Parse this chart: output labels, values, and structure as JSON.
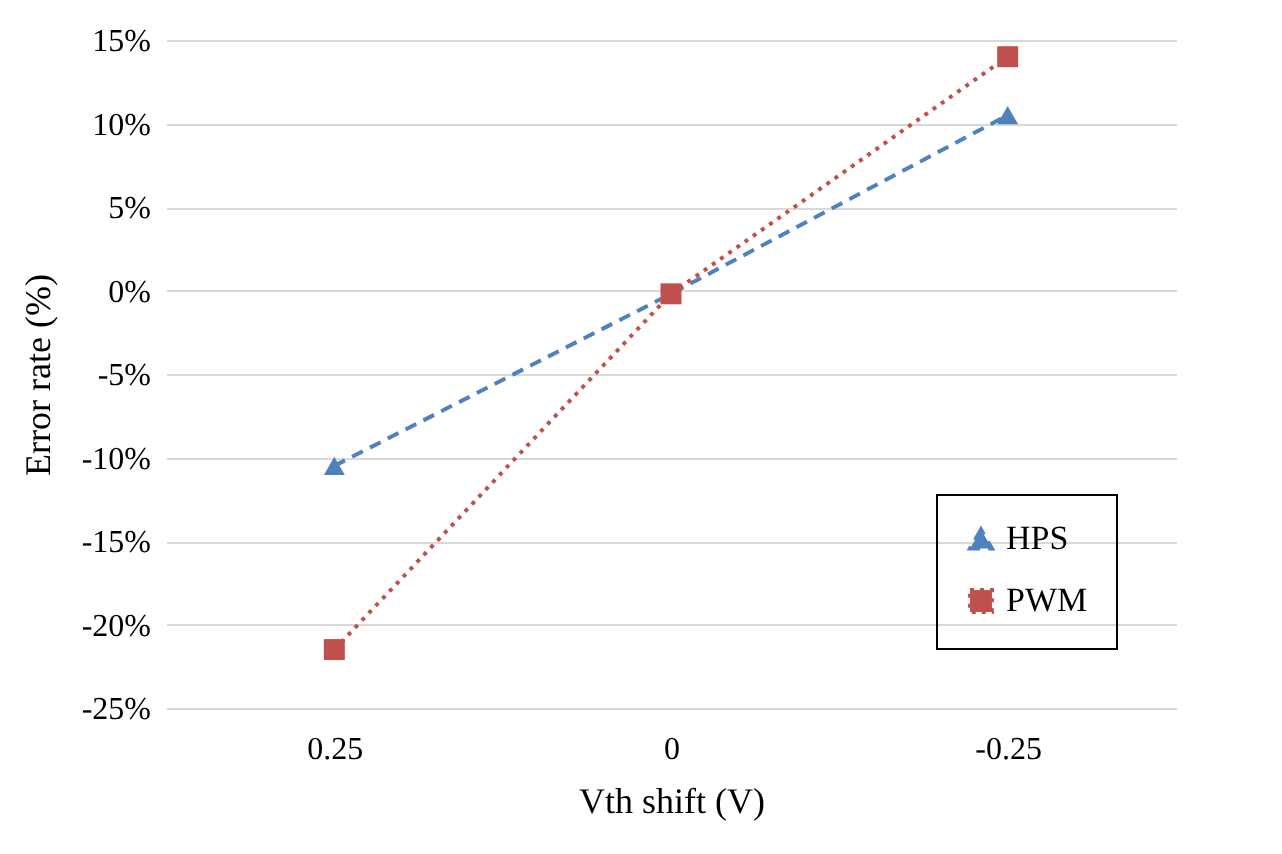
{
  "chart_data": {
    "type": "line",
    "xlabel": "Vth shift (V)",
    "ylabel": "Error rate (%)",
    "categories": [
      "0.25",
      "0",
      "-0.25"
    ],
    "series": [
      {
        "name": "HPS",
        "color": "#4f81bd",
        "values": [
          -10.5,
          -0.2,
          10.5
        ],
        "marker": "triangle",
        "line_style": "dashed"
      },
      {
        "name": "PWM",
        "color": "#c0504d",
        "values": [
          -21.5,
          -0.2,
          14
        ],
        "marker": "square",
        "line_style": "dotted"
      }
    ],
    "ylim": [
      -25,
      15
    ],
    "yticks": [
      {
        "value": -25,
        "label": "-25%"
      },
      {
        "value": -20,
        "label": "-20%"
      },
      {
        "value": -15,
        "label": "-15%"
      },
      {
        "value": -10,
        "label": "-10%"
      },
      {
        "value": -5,
        "label": "-5%"
      },
      {
        "value": 0,
        "label": "0%"
      },
      {
        "value": 5,
        "label": "5%"
      },
      {
        "value": 10,
        "label": "10%"
      },
      {
        "value": 15,
        "label": "15%"
      }
    ],
    "grid": "y",
    "legend": "bottom right"
  }
}
